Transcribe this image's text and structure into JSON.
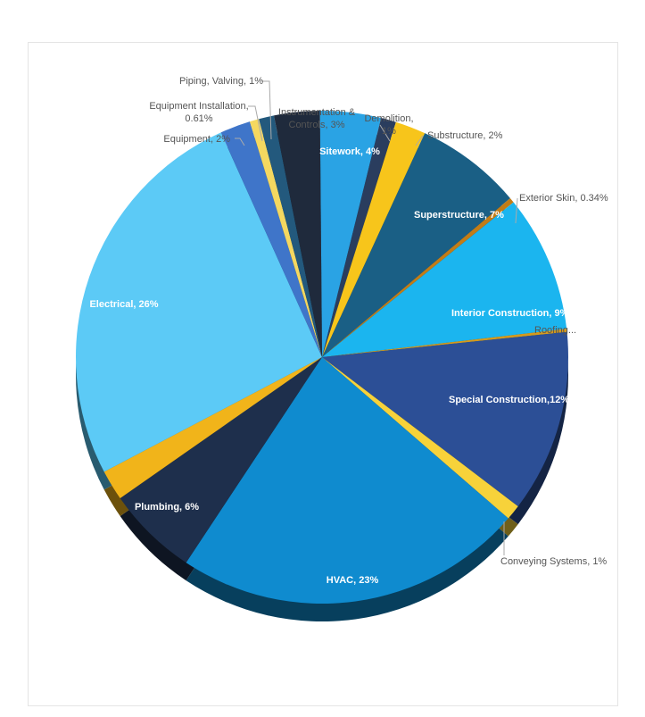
{
  "chart_data": {
    "type": "pie",
    "title": "",
    "slices": [
      {
        "label": "Sitework, 4%",
        "value": 4,
        "color": "#2aa3e4"
      },
      {
        "label": "Demolition, 1%",
        "value": 1,
        "color": "#2a3d5e"
      },
      {
        "label": "Substructure, 2%",
        "value": 2,
        "color": "#f7c51b"
      },
      {
        "label": "Superstructure, 7%",
        "value": 7,
        "color": "#1a5f85"
      },
      {
        "label": "Exterior Skin, 0.34%",
        "value": 0.34,
        "color": "#c27c16"
      },
      {
        "label": "Interior Construction, 9%",
        "value": 9,
        "color": "#1bb5ef"
      },
      {
        "label": "Roofing...",
        "value": 0.2,
        "color": "#d59a1c"
      },
      {
        "label": "Special Construction,12%",
        "value": 12,
        "color": "#2c4f96"
      },
      {
        "label": "Conveying Systems, 1%",
        "value": 1,
        "color": "#f7d23a"
      },
      {
        "label": "HVAC, 23%",
        "value": 23,
        "color": "#0f8bcf"
      },
      {
        "label": "Plumbing, 6%",
        "value": 6,
        "color": "#1e2f4c"
      },
      {
        "label": "",
        "value": 2,
        "color": "#f1b41a"
      },
      {
        "label": "Electrical, 26%",
        "value": 26,
        "color": "#5ccaf6"
      },
      {
        "label": "Equipment, 2%",
        "value": 2,
        "color": "#3f75c9"
      },
      {
        "label": "Equipment Installation, 0.61%",
        "value": 0.61,
        "color": "#f5d860"
      },
      {
        "label": "Piping, Valving, 1%",
        "value": 1,
        "color": "#23597d"
      },
      {
        "label": "Instrumentation & Controls, 3%",
        "value": 3,
        "color": "#1f2a3c"
      }
    ]
  },
  "labels": {
    "sitework": "Sitework, 4%",
    "demolition_1": "Demolition,",
    "demolition_2": "1%",
    "substructure": "Substructure, 2%",
    "superstructure": "Superstructure, 7%",
    "exterior_skin": "Exterior Skin, 0.34%",
    "interior": "Interior Construction, 9%",
    "roofing": "Roofing...",
    "special": "Special Construction,12%",
    "conveying": "Conveying Systems, 1%",
    "hvac": "HVAC, 23%",
    "plumbing": "Plumbing, 6%",
    "electrical": "Electrical, 26%",
    "equipment": "Equipment, 2%",
    "equip_install_1": "Equipment Installation,",
    "equip_install_2": "0.61%",
    "piping": "Piping, Valving, 1%",
    "instr_1": "Instrumentation &",
    "instr_2": "Controls, 3%"
  }
}
